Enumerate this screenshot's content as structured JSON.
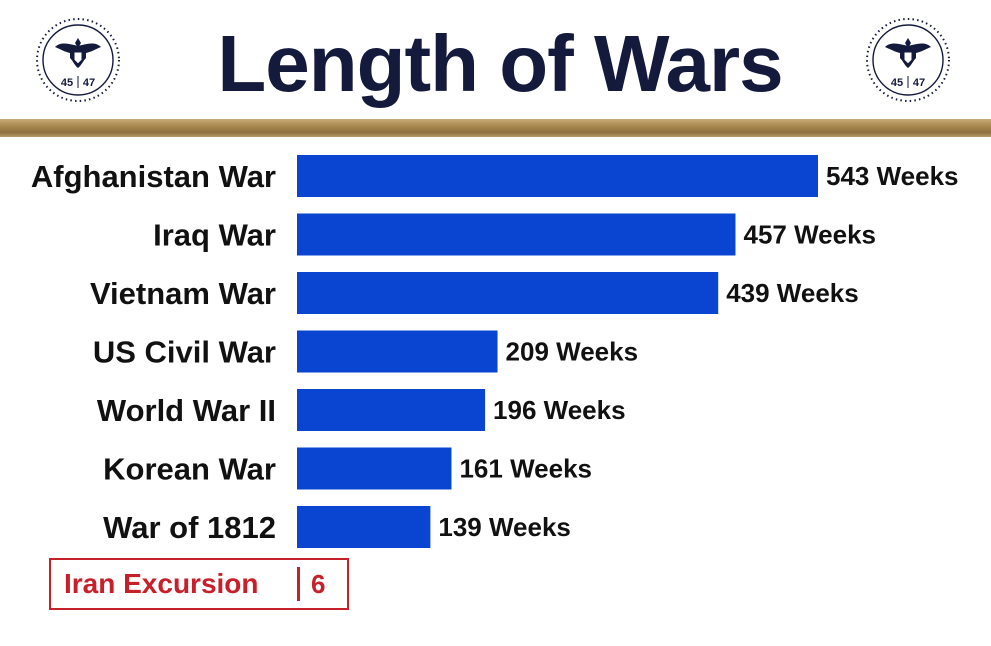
{
  "header": {
    "title": "Length of Wars",
    "seal_text_left": "45",
    "seal_text_right": "47"
  },
  "colors": {
    "bar": "#0a45d2",
    "title": "#141a3c",
    "accent_red": "#c8202a",
    "divider_gold": "#a8884e"
  },
  "chart_data": {
    "type": "bar",
    "orientation": "horizontal",
    "categories": [
      "Afghanistan War",
      "Iraq War",
      "Vietnam War",
      "US Civil War",
      "World War II",
      "Korean War",
      "War of 1812"
    ],
    "values": [
      543,
      457,
      439,
      209,
      196,
      161,
      139
    ],
    "data_labels": [
      "543 Weeks",
      "457 Weeks",
      "439 Weeks",
      "209 Weeks",
      "196 Weeks",
      "161 Weeks",
      "139 Weeks"
    ],
    "title": "Length of Wars",
    "unit": "Weeks",
    "xlim": [
      0,
      543
    ],
    "grid": false,
    "legend": "none"
  },
  "callout": {
    "label": "Iran Excursion",
    "value": "6"
  }
}
